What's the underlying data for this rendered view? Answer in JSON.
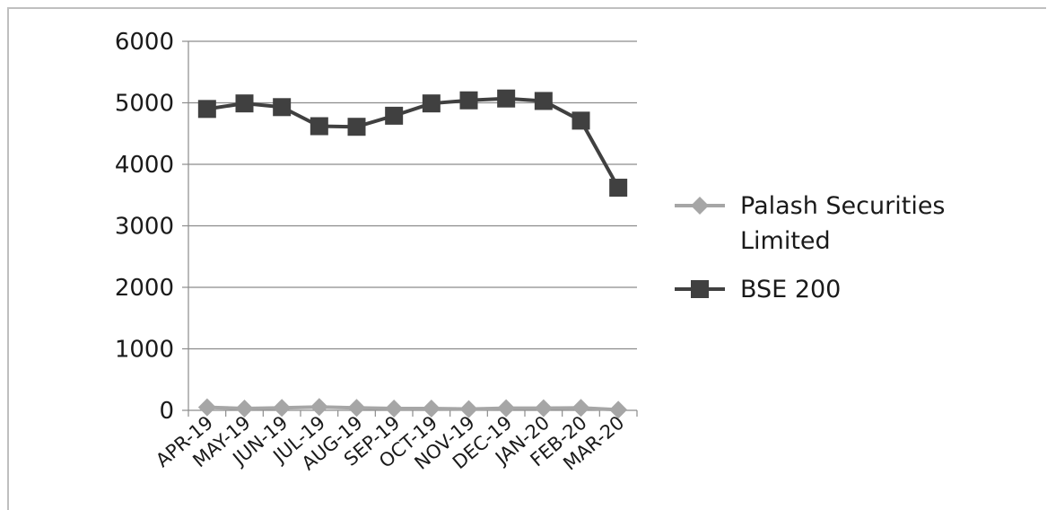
{
  "chart_data": {
    "type": "line",
    "categories": [
      "APR-19",
      "MAY-19",
      "JUN-19",
      "JUL-19",
      "AUG-19",
      "SEP-19",
      "OCT-19",
      "NOV-19",
      "DEC-19",
      "JAN-20",
      "FEB-20",
      "MAR-20"
    ],
    "series": [
      {
        "name": "Palash Securities Limited",
        "values": [
          50,
          30,
          40,
          55,
          40,
          30,
          30,
          20,
          35,
          35,
          40,
          10
        ],
        "color": "#a6a6a6",
        "marker": "diamond"
      },
      {
        "name": "BSE 200",
        "values": [
          4900,
          4990,
          4930,
          4620,
          4610,
          4790,
          4990,
          5040,
          5070,
          5030,
          4710,
          3620
        ],
        "color": "#404040",
        "marker": "square"
      }
    ],
    "yticks": [
      "0",
      "1000",
      "2000",
      "3000",
      "4000",
      "5000",
      "6000"
    ],
    "ylim": [
      0,
      6000
    ],
    "grid": true,
    "legend_position": "right",
    "title": "",
    "xlabel": "",
    "ylabel": ""
  },
  "legend": {
    "series1_line1": "Palash Securities",
    "series1_line2": "Limited",
    "series2": "BSE 200"
  }
}
